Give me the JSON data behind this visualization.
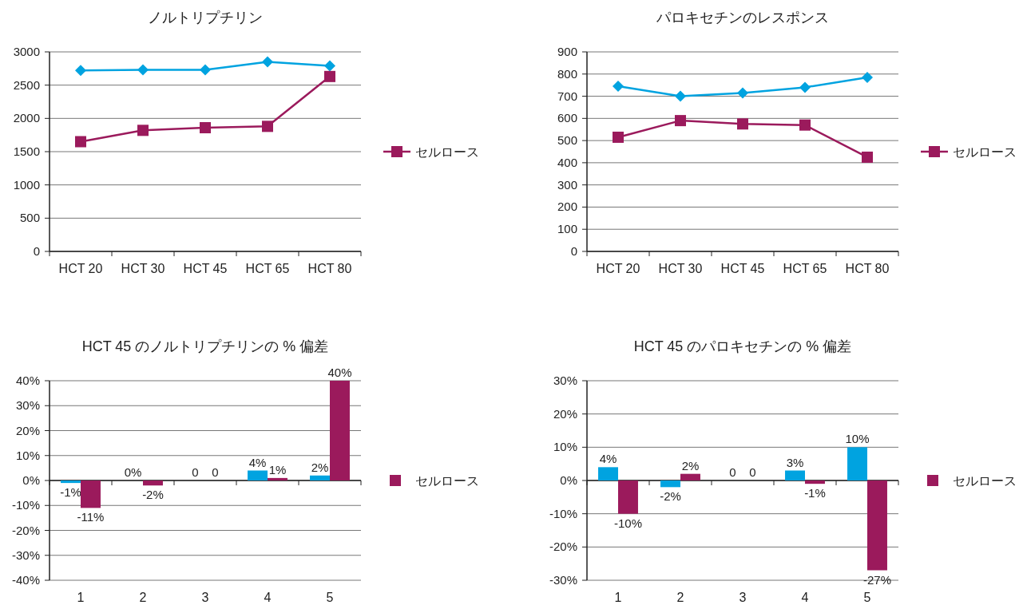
{
  "chart_data": [
    {
      "type": "line",
      "title": "ノルトリプチリン",
      "categories": [
        "HCT 20",
        "HCT 30",
        "HCT 45",
        "HCT 65",
        "HCT 80"
      ],
      "series": [
        {
          "color": "#00a3e0",
          "marker": "diamond",
          "values": [
            2720,
            2730,
            2730,
            2850,
            2790
          ]
        },
        {
          "name": "セルロース",
          "color": "#9b1a5c",
          "marker": "square",
          "values": [
            1650,
            1820,
            1860,
            1880,
            2630
          ]
        }
      ],
      "ylim": [
        0,
        3000
      ],
      "yticks": [
        0,
        500,
        1000,
        1500,
        2000,
        2500,
        3000
      ],
      "grid": "y",
      "legend": "right"
    },
    {
      "type": "line",
      "title": "パロキセチンのレスポンス",
      "categories": [
        "HCT 20",
        "HCT 30",
        "HCT 45",
        "HCT 65",
        "HCT 80"
      ],
      "series": [
        {
          "color": "#00a3e0",
          "marker": "diamond",
          "values": [
            745,
            700,
            715,
            740,
            785
          ]
        },
        {
          "name": "セルロース",
          "color": "#9b1a5c",
          "marker": "square",
          "values": [
            515,
            590,
            575,
            570,
            425
          ]
        }
      ],
      "ylim": [
        0,
        900
      ],
      "yticks": [
        0,
        100,
        200,
        300,
        400,
        500,
        600,
        700,
        800,
        900
      ],
      "grid": "y",
      "legend": "right"
    },
    {
      "type": "bar",
      "title": "HCT 45 のノルトリプチリンの % 偏差",
      "categories": [
        "1",
        "2",
        "3",
        "4",
        "5"
      ],
      "series": [
        {
          "color": "#00a3e0",
          "values": [
            -1,
            0,
            0,
            4,
            2
          ],
          "value_labels": [
            "-1%",
            "0%",
            "0",
            "4%",
            "2%"
          ]
        },
        {
          "name": "セルロース",
          "color": "#9b1a5c",
          "values": [
            -11,
            -2,
            0,
            1,
            40
          ],
          "value_labels": [
            "-11%",
            "-2%",
            "0",
            "1%",
            "40%"
          ]
        }
      ],
      "ylim": [
        -40,
        40
      ],
      "yticks": [
        {
          "value": -40,
          "label": "-40%"
        },
        {
          "value": -30,
          "label": "-30%"
        },
        {
          "value": -20,
          "label": "-20%"
        },
        {
          "value": -10,
          "label": "-10%"
        },
        {
          "value": 0,
          "label": "0%"
        },
        {
          "value": 10,
          "label": "10%"
        },
        {
          "value": 20,
          "label": "20%"
        },
        {
          "value": 30,
          "label": "30%"
        },
        {
          "value": 40,
          "label": "40%"
        }
      ],
      "grid": "y",
      "legend": "right"
    },
    {
      "type": "bar",
      "title": "HCT 45 のパロキセチンの % 偏差",
      "categories": [
        "1",
        "2",
        "3",
        "4",
        "5"
      ],
      "series": [
        {
          "color": "#00a3e0",
          "values": [
            4,
            -2,
            0,
            3,
            10
          ],
          "value_labels": [
            "4%",
            "-2%",
            "0",
            "3%",
            "10%"
          ]
        },
        {
          "name": "セルロース",
          "color": "#9b1a5c",
          "values": [
            -10,
            2,
            0,
            -1,
            -27
          ],
          "value_labels": [
            "-10%",
            "2%",
            "0",
            "-1%",
            "-27%"
          ]
        }
      ],
      "ylim": [
        -30,
        30
      ],
      "yticks": [
        {
          "value": -30,
          "label": "-30%"
        },
        {
          "value": -20,
          "label": "-20%"
        },
        {
          "value": -10,
          "label": "-10%"
        },
        {
          "value": 0,
          "label": "0%"
        },
        {
          "value": 10,
          "label": "10%"
        },
        {
          "value": 20,
          "label": "20%"
        },
        {
          "value": 30,
          "label": "30%"
        }
      ],
      "grid": "y",
      "legend": "right"
    }
  ]
}
